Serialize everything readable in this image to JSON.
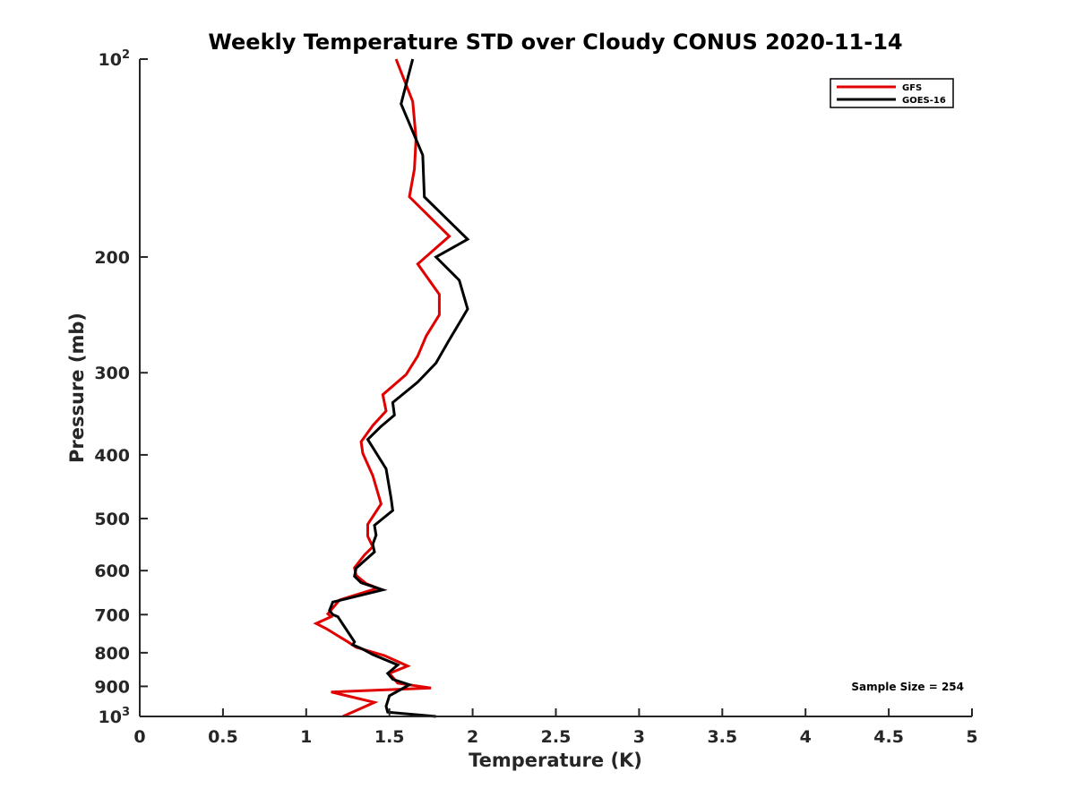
{
  "chart_data": {
    "type": "line",
    "title": "Weekly Temperature STD over Cloudy CONUS 2020-11-14",
    "xlabel": "Temperature (K)",
    "ylabel": "Pressure (mb)",
    "xlim": [
      0,
      5
    ],
    "ylim": [
      100,
      1000
    ],
    "y_scale": "log",
    "y_reversed": true,
    "grid": false,
    "legend_position": "top-right",
    "x_ticks": [
      0,
      0.5,
      1,
      1.5,
      2,
      2.5,
      3,
      3.5,
      4,
      4.5,
      5
    ],
    "x_tick_labels": [
      "0",
      "0.5",
      "1",
      "1.5",
      "2",
      "2.5",
      "3",
      "3.5",
      "4",
      "4.5",
      "5"
    ],
    "y_ticks": [
      {
        "value": 100,
        "base": "10",
        "exp": "2"
      },
      {
        "value": 200,
        "label": "200"
      },
      {
        "value": 300,
        "label": "300"
      },
      {
        "value": 400,
        "label": "400"
      },
      {
        "value": 500,
        "label": "500"
      },
      {
        "value": 600,
        "label": "600"
      },
      {
        "value": 700,
        "label": "700"
      },
      {
        "value": 800,
        "label": "800"
      },
      {
        "value": 900,
        "label": "900"
      },
      {
        "value": 1000,
        "base": "10",
        "exp": "3"
      }
    ],
    "series": [
      {
        "name": "GFS",
        "color": "#e00000",
        "points": [
          [
            1.54,
            100
          ],
          [
            1.64,
            116
          ],
          [
            1.66,
            132
          ],
          [
            1.65,
            147
          ],
          [
            1.62,
            162
          ],
          [
            1.86,
            186
          ],
          [
            1.67,
            205
          ],
          [
            1.8,
            228
          ],
          [
            1.8,
            245
          ],
          [
            1.72,
            264
          ],
          [
            1.67,
            283
          ],
          [
            1.6,
            302
          ],
          [
            1.46,
            324
          ],
          [
            1.48,
            343
          ],
          [
            1.4,
            361
          ],
          [
            1.33,
            382
          ],
          [
            1.34,
            398
          ],
          [
            1.4,
            430
          ],
          [
            1.45,
            475
          ],
          [
            1.37,
            510
          ],
          [
            1.37,
            532
          ],
          [
            1.4,
            552
          ],
          [
            1.35,
            568
          ],
          [
            1.29,
            594
          ],
          [
            1.3,
            610
          ],
          [
            1.36,
            628
          ],
          [
            1.43,
            638
          ],
          [
            1.2,
            665
          ],
          [
            1.13,
            698
          ],
          [
            1.15,
            705
          ],
          [
            1.06,
            722
          ],
          [
            1.12,
            735
          ],
          [
            1.25,
            770
          ],
          [
            1.3,
            785
          ],
          [
            1.47,
            808
          ],
          [
            1.61,
            838
          ],
          [
            1.5,
            860
          ],
          [
            1.55,
            890
          ],
          [
            1.75,
            905
          ],
          [
            1.15,
            918
          ],
          [
            1.41,
            952
          ],
          [
            1.22,
            1000
          ]
        ]
      },
      {
        "name": "GOES-16",
        "color": "#000000",
        "points": [
          [
            1.64,
            100
          ],
          [
            1.57,
            117
          ],
          [
            1.7,
            140
          ],
          [
            1.71,
            162
          ],
          [
            1.97,
            188
          ],
          [
            1.78,
            200
          ],
          [
            1.92,
            217
          ],
          [
            1.97,
            240
          ],
          [
            1.85,
            270
          ],
          [
            1.78,
            290
          ],
          [
            1.67,
            310
          ],
          [
            1.52,
            333
          ],
          [
            1.53,
            348
          ],
          [
            1.45,
            362
          ],
          [
            1.37,
            379
          ],
          [
            1.48,
            420
          ],
          [
            1.51,
            466
          ],
          [
            1.52,
            486
          ],
          [
            1.41,
            512
          ],
          [
            1.42,
            530
          ],
          [
            1.4,
            547
          ],
          [
            1.41,
            562
          ],
          [
            1.3,
            595
          ],
          [
            1.29,
            612
          ],
          [
            1.33,
            626
          ],
          [
            1.46,
            642
          ],
          [
            1.16,
            670
          ],
          [
            1.14,
            690
          ],
          [
            1.16,
            700
          ],
          [
            1.19,
            705
          ],
          [
            1.29,
            770
          ],
          [
            1.28,
            778
          ],
          [
            1.34,
            790
          ],
          [
            1.4,
            805
          ],
          [
            1.55,
            835
          ],
          [
            1.49,
            860
          ],
          [
            1.52,
            878
          ],
          [
            1.62,
            895
          ],
          [
            1.5,
            930
          ],
          [
            1.48,
            965
          ],
          [
            1.49,
            985
          ],
          [
            1.78,
            1000
          ]
        ]
      }
    ],
    "annotation": "Sample Size = 254"
  }
}
